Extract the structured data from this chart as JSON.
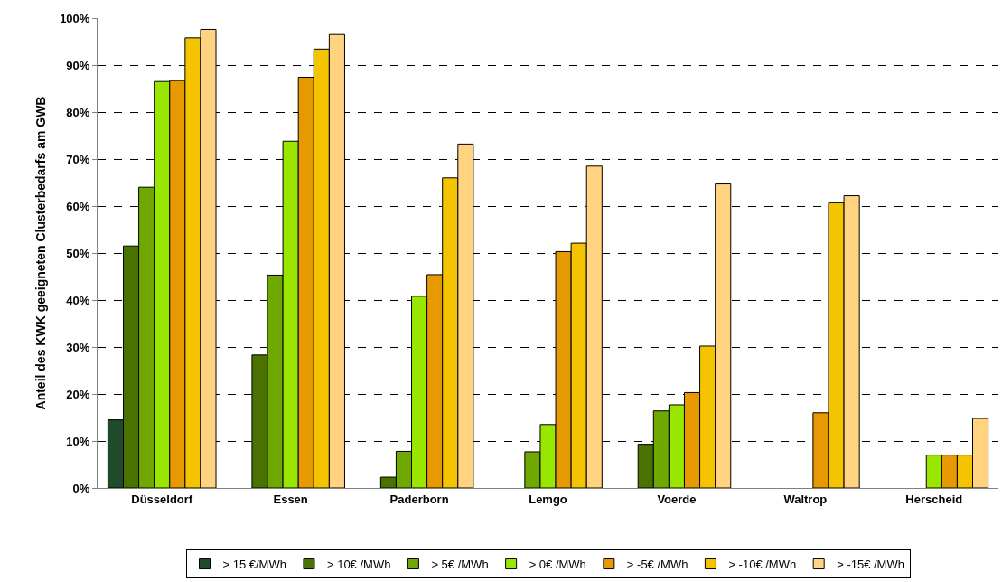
{
  "chart_data": {
    "type": "bar",
    "ylabel": "Anteil des KWK geeigneten Clusterbedarfs am GWB",
    "categories": [
      "Düsseldorf",
      "Essen",
      "Paderborn",
      "Lemgo",
      "Voerde",
      "Waltrop",
      "Herscheid"
    ],
    "series": [
      {
        "name": "> 15 €/MWh",
        "color": "#1f4b2a",
        "values": [
          14.5,
          null,
          null,
          null,
          null,
          null,
          null
        ]
      },
      {
        "name": "> 10€ /MWh",
        "color": "#4a7200",
        "values": [
          51.5,
          28.3,
          2.3,
          null,
          9.3,
          null,
          null
        ]
      },
      {
        "name": "> 5€ /MWh",
        "color": "#6fa800",
        "values": [
          64,
          45.3,
          7.8,
          7.7,
          16.4,
          null,
          null
        ]
      },
      {
        "name": "> 0€ /MWh",
        "color": "#99e600",
        "values": [
          86.5,
          73.8,
          40.8,
          13.5,
          17.7,
          null,
          7
        ]
      },
      {
        "name": "> -5€ /MWh",
        "color": "#e69900",
        "values": [
          86.7,
          87.4,
          45.4,
          50.3,
          20.3,
          16,
          7
        ]
      },
      {
        "name": "> -10€ /MWh",
        "color": "#f5c400",
        "values": [
          95.8,
          93.4,
          66,
          52.1,
          30.2,
          60.7,
          7
        ]
      },
      {
        "name": "> -15€ /MWh",
        "color": "#ffd37f",
        "values": [
          97.6,
          96.5,
          73.2,
          68.5,
          64.7,
          62.2,
          14.8
        ]
      }
    ],
    "ylim": [
      0,
      100
    ],
    "yticks": [
      {
        "value": 0,
        "label": "0%"
      },
      {
        "value": 10,
        "label": "10%"
      },
      {
        "value": 20,
        "label": "20%"
      },
      {
        "value": 30,
        "label": "30%"
      },
      {
        "value": 40,
        "label": "40%"
      },
      {
        "value": 50,
        "label": "50%"
      },
      {
        "value": 60,
        "label": "60%"
      },
      {
        "value": 70,
        "label": "70%"
      },
      {
        "value": 80,
        "label": "80%"
      },
      {
        "value": 90,
        "label": "90%"
      },
      {
        "value": 100,
        "label": "100%"
      }
    ],
    "grid": "y",
    "legend": "bottom"
  }
}
